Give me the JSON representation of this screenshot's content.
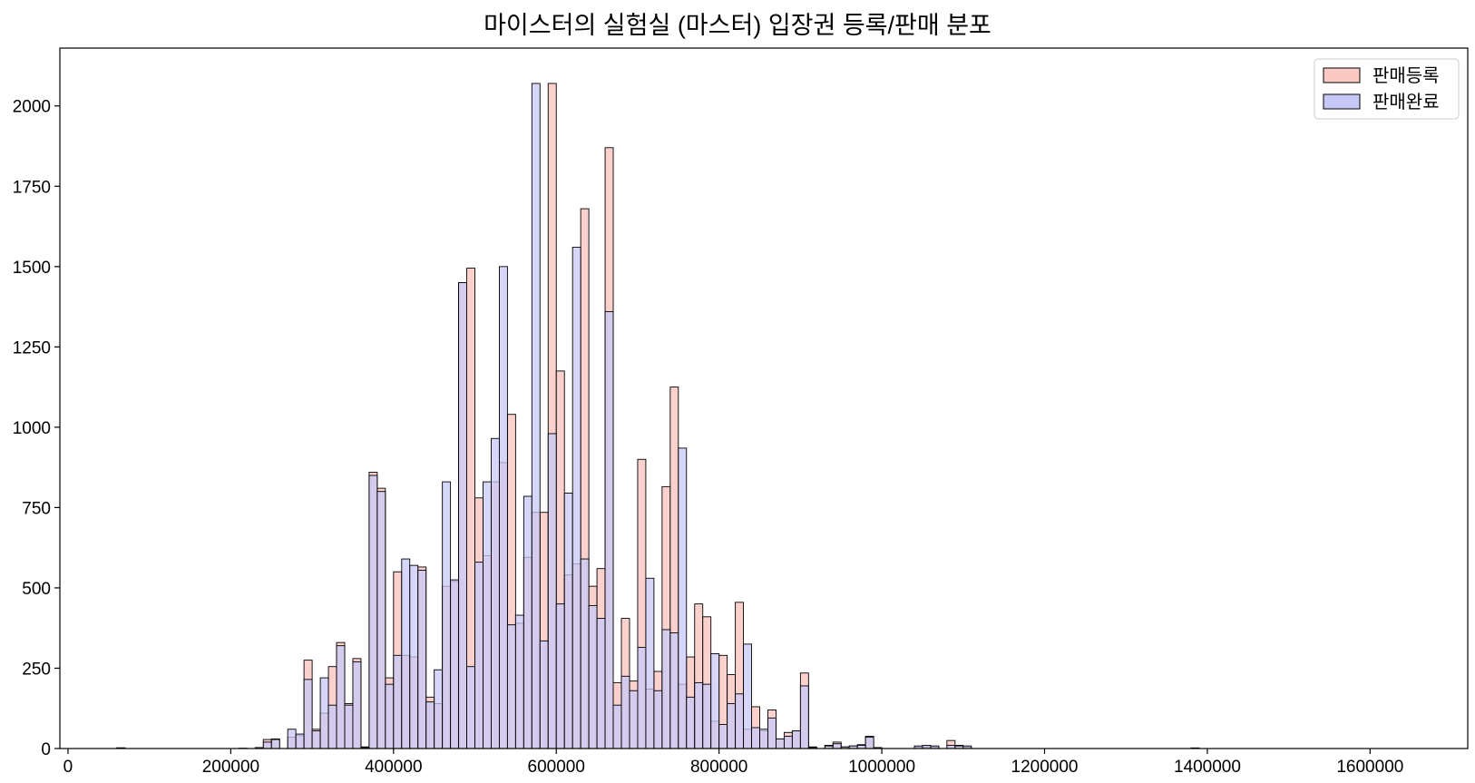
{
  "title": "마이스터의 실험실 (마스터) 입장권 등록/판매 분포",
  "chart_data": {
    "type": "bar",
    "subtype": "histogram-overlay",
    "title": "마이스터의 실험실 (마스터) 입장권 등록/판매 분포",
    "xlabel": "",
    "ylabel": "",
    "xlim": [
      -10000,
      1720000
    ],
    "ylim": [
      0,
      2180
    ],
    "xticks": [
      0,
      200000,
      400000,
      600000,
      800000,
      1000000,
      1200000,
      1400000,
      1600000
    ],
    "yticks": [
      0,
      250,
      500,
      750,
      1000,
      1250,
      1500,
      1750,
      2000
    ],
    "bin_width": 10000,
    "grid": false,
    "legend_position": "top-right",
    "series": [
      {
        "name": "판매등록",
        "color": "#fac9c4",
        "bins": [
          [
            60000,
            2
          ],
          [
            210000,
            1
          ],
          [
            230000,
            3
          ],
          [
            240000,
            28
          ],
          [
            250000,
            30
          ],
          [
            270000,
            35
          ],
          [
            280000,
            40
          ],
          [
            290000,
            275
          ],
          [
            300000,
            60
          ],
          [
            310000,
            110
          ],
          [
            320000,
            255
          ],
          [
            330000,
            330
          ],
          [
            340000,
            140
          ],
          [
            350000,
            280
          ],
          [
            360000,
            5
          ],
          [
            370000,
            860
          ],
          [
            380000,
            810
          ],
          [
            390000,
            220
          ],
          [
            400000,
            550
          ],
          [
            410000,
            290
          ],
          [
            420000,
            285
          ],
          [
            430000,
            565
          ],
          [
            440000,
            160
          ],
          [
            450000,
            140
          ],
          [
            460000,
            505
          ],
          [
            470000,
            520
          ],
          [
            480000,
            1450
          ],
          [
            490000,
            1495
          ],
          [
            500000,
            780
          ],
          [
            510000,
            600
          ],
          [
            520000,
            830
          ],
          [
            530000,
            890
          ],
          [
            540000,
            1040
          ],
          [
            550000,
            390
          ],
          [
            560000,
            595
          ],
          [
            570000,
            735
          ],
          [
            580000,
            735
          ],
          [
            590000,
            2070
          ],
          [
            600000,
            1175
          ],
          [
            610000,
            540
          ],
          [
            620000,
            575
          ],
          [
            630000,
            1680
          ],
          [
            640000,
            505
          ],
          [
            650000,
            560
          ],
          [
            660000,
            1870
          ],
          [
            670000,
            205
          ],
          [
            680000,
            405
          ],
          [
            690000,
            210
          ],
          [
            700000,
            900
          ],
          [
            710000,
            185
          ],
          [
            720000,
            240
          ],
          [
            730000,
            815
          ],
          [
            740000,
            1125
          ],
          [
            750000,
            200
          ],
          [
            760000,
            285
          ],
          [
            770000,
            450
          ],
          [
            780000,
            410
          ],
          [
            790000,
            85
          ],
          [
            800000,
            290
          ],
          [
            810000,
            230
          ],
          [
            820000,
            455
          ],
          [
            830000,
            60
          ],
          [
            840000,
            130
          ],
          [
            850000,
            55
          ],
          [
            860000,
            120
          ],
          [
            870000,
            30
          ],
          [
            880000,
            50
          ],
          [
            890000,
            55
          ],
          [
            900000,
            235
          ],
          [
            910000,
            5
          ],
          [
            930000,
            10
          ],
          [
            940000,
            20
          ],
          [
            950000,
            5
          ],
          [
            960000,
            8
          ],
          [
            970000,
            12
          ],
          [
            980000,
            38
          ],
          [
            990000,
            3
          ],
          [
            1040000,
            5
          ],
          [
            1050000,
            5
          ],
          [
            1060000,
            5
          ],
          [
            1080000,
            25
          ],
          [
            1090000,
            10
          ],
          [
            1100000,
            5
          ],
          [
            1380000,
            2
          ]
        ]
      },
      {
        "name": "판매완료",
        "color": "#c8c8f7",
        "bins": [
          [
            60000,
            2
          ],
          [
            240000,
            20
          ],
          [
            250000,
            28
          ],
          [
            270000,
            60
          ],
          [
            280000,
            45
          ],
          [
            290000,
            215
          ],
          [
            300000,
            55
          ],
          [
            310000,
            220
          ],
          [
            320000,
            135
          ],
          [
            330000,
            320
          ],
          [
            340000,
            135
          ],
          [
            350000,
            270
          ],
          [
            360000,
            3
          ],
          [
            370000,
            850
          ],
          [
            380000,
            800
          ],
          [
            390000,
            200
          ],
          [
            400000,
            290
          ],
          [
            410000,
            590
          ],
          [
            420000,
            570
          ],
          [
            430000,
            555
          ],
          [
            440000,
            145
          ],
          [
            450000,
            245
          ],
          [
            460000,
            830
          ],
          [
            470000,
            525
          ],
          [
            480000,
            1450
          ],
          [
            490000,
            255
          ],
          [
            500000,
            580
          ],
          [
            510000,
            830
          ],
          [
            520000,
            965
          ],
          [
            530000,
            1500
          ],
          [
            540000,
            385
          ],
          [
            550000,
            415
          ],
          [
            560000,
            785
          ],
          [
            570000,
            2070
          ],
          [
            580000,
            335
          ],
          [
            590000,
            980
          ],
          [
            600000,
            450
          ],
          [
            610000,
            795
          ],
          [
            620000,
            1560
          ],
          [
            630000,
            590
          ],
          [
            640000,
            445
          ],
          [
            650000,
            405
          ],
          [
            660000,
            1360
          ],
          [
            670000,
            135
          ],
          [
            680000,
            225
          ],
          [
            690000,
            180
          ],
          [
            700000,
            315
          ],
          [
            710000,
            530
          ],
          [
            720000,
            180
          ],
          [
            730000,
            370
          ],
          [
            740000,
            360
          ],
          [
            750000,
            935
          ],
          [
            760000,
            160
          ],
          [
            770000,
            205
          ],
          [
            780000,
            200
          ],
          [
            790000,
            295
          ],
          [
            800000,
            75
          ],
          [
            810000,
            140
          ],
          [
            820000,
            170
          ],
          [
            830000,
            325
          ],
          [
            840000,
            65
          ],
          [
            850000,
            60
          ],
          [
            860000,
            95
          ],
          [
            870000,
            30
          ],
          [
            880000,
            38
          ],
          [
            890000,
            55
          ],
          [
            900000,
            195
          ],
          [
            910000,
            3
          ],
          [
            930000,
            8
          ],
          [
            940000,
            15
          ],
          [
            950000,
            5
          ],
          [
            960000,
            8
          ],
          [
            970000,
            10
          ],
          [
            980000,
            35
          ],
          [
            990000,
            3
          ],
          [
            1040000,
            8
          ],
          [
            1050000,
            10
          ],
          [
            1060000,
            8
          ],
          [
            1080000,
            10
          ],
          [
            1090000,
            8
          ],
          [
            1100000,
            8
          ],
          [
            1380000,
            1
          ]
        ]
      }
    ]
  }
}
